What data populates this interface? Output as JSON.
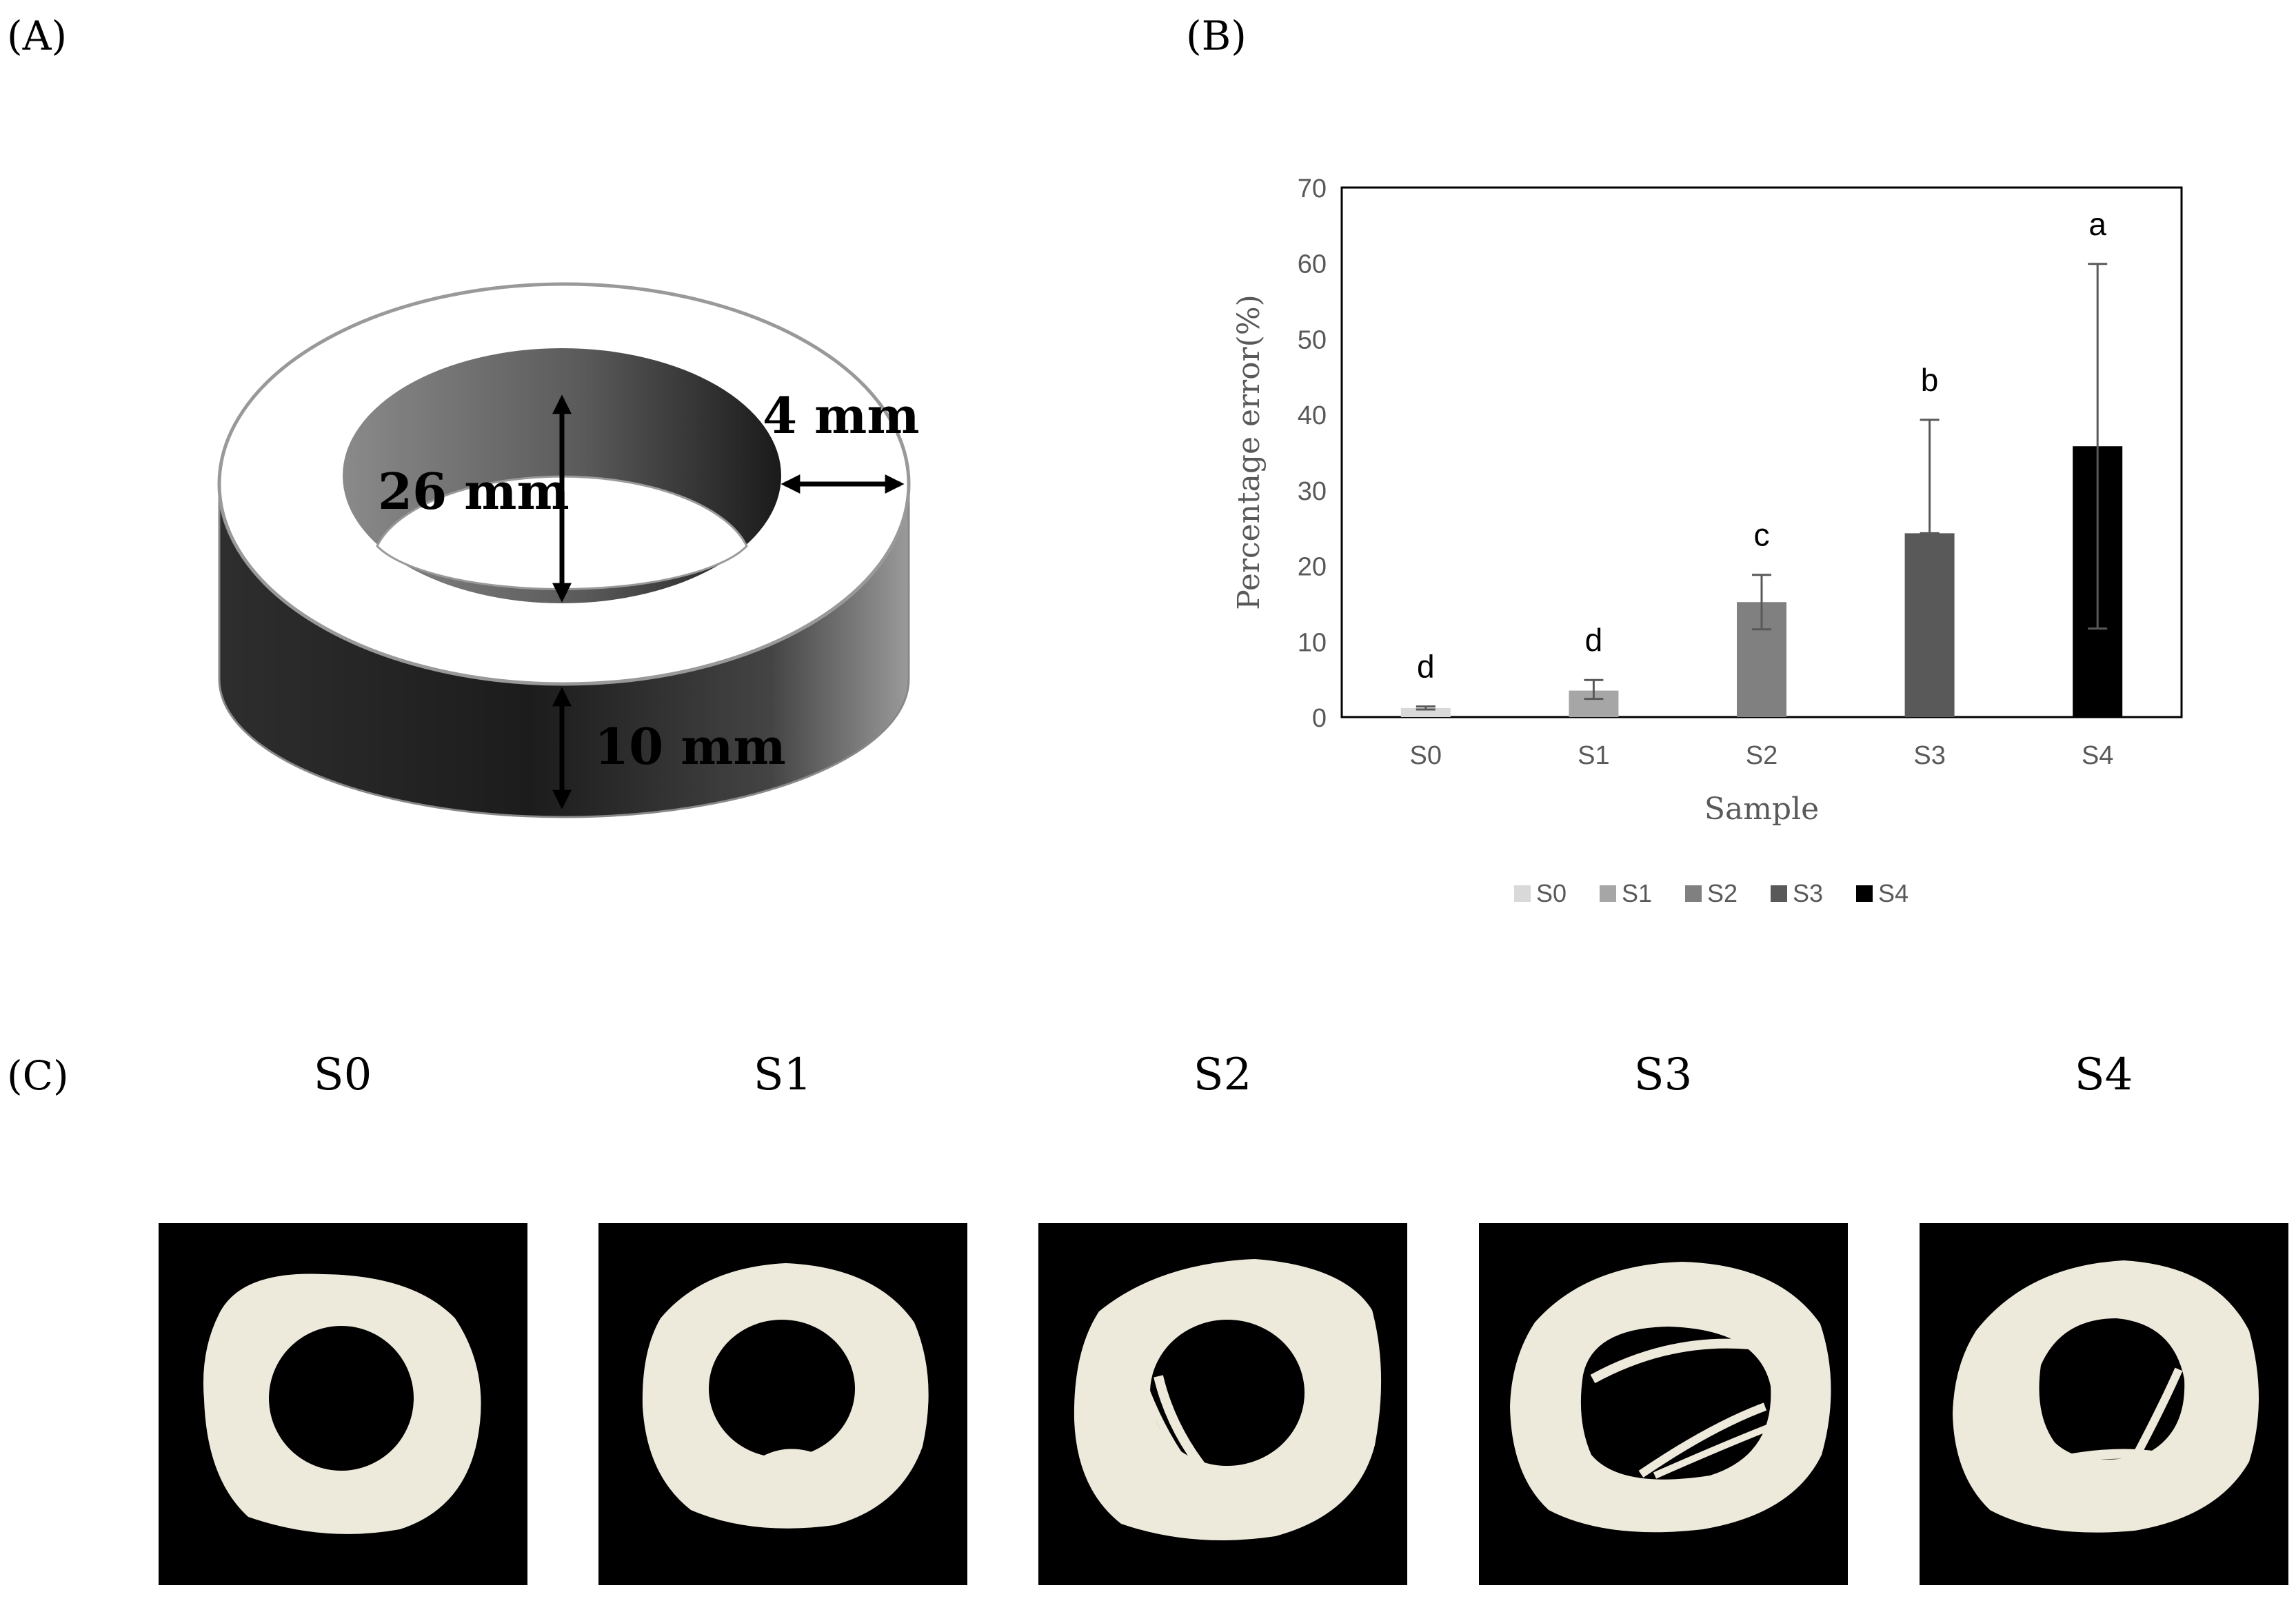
{
  "panel_labels": {
    "a": "(A)",
    "b": "(B)",
    "c": "(C)"
  },
  "ring_dimensions": {
    "inner_diameter": "26 mm",
    "wall_thickness": "4 mm",
    "height": "10 mm"
  },
  "chart_data": {
    "type": "bar",
    "categories": [
      "S0",
      "S1",
      "S2",
      "S3",
      "S4"
    ],
    "values": [
      1.2,
      3.5,
      15.2,
      24.3,
      35.8
    ],
    "errors_upper": [
      1.4,
      4.9,
      18.8,
      39.3,
      59.9
    ],
    "errors_lower": [
      1.0,
      2.4,
      11.6,
      24.3,
      11.7
    ],
    "significance_letters": [
      "d",
      "d",
      "c",
      "b",
      "a"
    ],
    "colors": [
      "#d9d9d9",
      "#a6a6a6",
      "#808080",
      "#595959",
      "#000000"
    ],
    "title": "",
    "xlabel": "Sample",
    "ylabel": "Percentage error(%)",
    "ylim": [
      0,
      70
    ],
    "yticks": [
      "0",
      "10",
      "20",
      "30",
      "40",
      "50",
      "60",
      "70"
    ],
    "grid": false,
    "legend": [
      "S0",
      "S1",
      "S2",
      "S3",
      "S4"
    ],
    "legend_position": "bottom"
  },
  "photo_labels": [
    "S0",
    "S1",
    "S2",
    "S3",
    "S4"
  ]
}
